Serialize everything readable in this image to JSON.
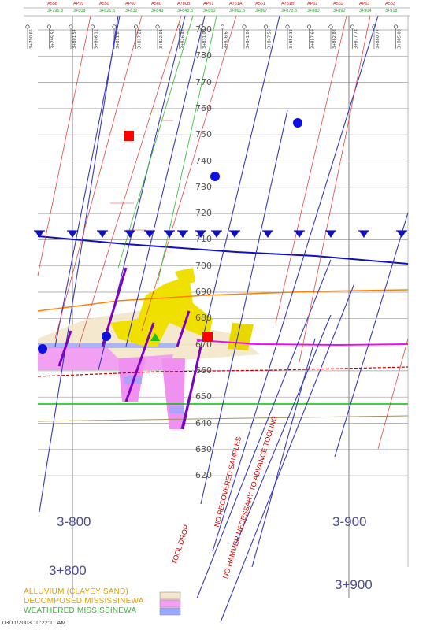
{
  "top_header": {
    "sample_ids": [
      "A558",
      "AP59",
      "A559",
      "AP60",
      "A560",
      "A780B",
      "AP61",
      "A761A",
      "A561",
      "A761B",
      "AP62",
      "A562",
      "AP63",
      "A563"
    ],
    "stations": [
      "3+795.3",
      "3+808",
      "3+821.5",
      "3+832",
      "3+843",
      "3+845.5",
      "3+850",
      "3+861.5",
      "3+867",
      "3+873.5",
      "3+880",
      "3+892",
      "3+904",
      "3+918"
    ]
  },
  "boring_labels": [
    "3+790.65",
    "3+795.52",
    "3+801.54",
    "3+806.12",
    "3+811.8",
    "3+817.21",
    "3+822.01",
    "3+826.47",
    "3+831.03",
    "3+836.6",
    "3+841.03",
    "3+847.53",
    "3+852.32",
    "3+857.69",
    "3+862.88",
    "3+877.74",
    "3+880.77",
    "3+885.08"
  ],
  "elevation_ticks": [
    "790",
    "780",
    "770",
    "760",
    "750",
    "740",
    "730",
    "720",
    "710",
    "700",
    "690",
    "680",
    "670",
    "660",
    "650",
    "640",
    "630",
    "620"
  ],
  "station_labels": {
    "upper_left": "3-800",
    "upper_right": "3-900",
    "lower_left": "3+800",
    "lower_right": "3+900"
  },
  "notes": {
    "tool_drop": "TOOL DROP",
    "no_recovered": "NO RECOVERED SAMPLES",
    "no_hammer": "NO HAMMER NECESSARY TO ADVANCE TOOLING"
  },
  "small_labels": [
    "560",
    "391",
    "560",
    "3/28",
    "3/90",
    "3/105",
    "3/97"
  ],
  "legend": {
    "alluvium": "ALLUVIUM (CLAYEY SAND)",
    "decomposed": "DECOMPOSED MISSISSINEWA",
    "weathered": "WEATHERED MISSISSINEWA"
  },
  "timestamp": "03/11/2003 10:22:11 AM",
  "colors": {
    "grid": "#808080",
    "boring_line": "#3a3ab8",
    "red_line": "#e04848",
    "green_line": "#40c040",
    "water_table": "#1010c0",
    "yellow_fill": "#f0e000",
    "magenta": "#ff00ff",
    "orange": "#ff8000",
    "dark_red": "#c00000",
    "lime": "#00c000",
    "legend_orange": "#e0a000",
    "legend_green": "#40b040"
  }
}
